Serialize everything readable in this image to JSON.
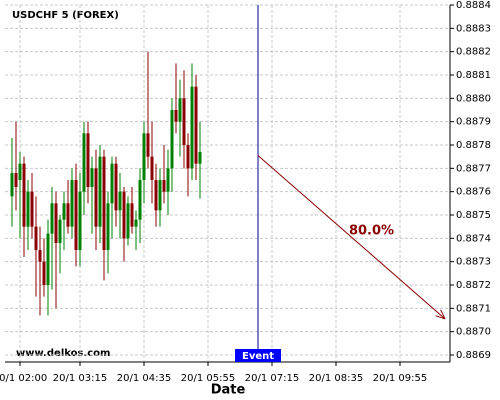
{
  "chart_data": {
    "type": "candlestick",
    "title": "USDCHF 5 (FOREX)",
    "watermark": "www.delkos.com",
    "x_label": "Date",
    "up_color": "#008000",
    "down_color": "#8b0000",
    "grid": true,
    "xlim": [
      -3.75,
      107.5
    ],
    "xticks": [
      {
        "value": 0,
        "label": "20/1 02:00"
      },
      {
        "value": 15,
        "label": "20/1 03:15"
      },
      {
        "value": 31,
        "label": "20/1 04:35"
      },
      {
        "value": 47,
        "label": "20/1 05:55"
      },
      {
        "value": 63,
        "label": "20/1 07:15"
      },
      {
        "value": 79,
        "label": "20/1 08:35"
      },
      {
        "value": 95,
        "label": "20/1 09:55"
      }
    ],
    "ylim": [
      0.88687,
      0.8884
    ],
    "yticks": [
      0.8869,
      {
        "value": 0.887,
        "label": "0.8870"
      },
      0.8871,
      0.8872,
      0.8873,
      0.8874,
      0.8875,
      0.8876,
      0.8877,
      0.8878,
      0.8879,
      {
        "value": 0.888,
        "label": "0.8880"
      },
      0.8881,
      0.8882,
      0.8883,
      0.8884
    ],
    "x": [
      -2,
      -1,
      0,
      1,
      2,
      3,
      4,
      5,
      6,
      7,
      8,
      9,
      10,
      11,
      12,
      13,
      14,
      15,
      16,
      17,
      18,
      19,
      20,
      21,
      22,
      23,
      24,
      25,
      26,
      27,
      28,
      29,
      30,
      31,
      32,
      33,
      34,
      35,
      36,
      37,
      38,
      39,
      40,
      41,
      42,
      43,
      44,
      45
    ],
    "open": [
      0.88758,
      0.88768,
      0.88765,
      0.88772,
      0.88745,
      0.8876,
      0.88745,
      0.88735,
      0.8873,
      0.8872,
      0.88742,
      0.88755,
      0.88738,
      0.88748,
      0.88755,
      0.88745,
      0.88765,
      0.88735,
      0.8876,
      0.88785,
      0.88762,
      0.8877,
      0.88745,
      0.88775,
      0.88735,
      0.88755,
      0.88772,
      0.88752,
      0.8876,
      0.8874,
      0.88755,
      0.88745,
      0.88748,
      0.88765,
      0.88785,
      0.88775,
      0.88765,
      0.88752,
      0.88765,
      0.8876,
      0.8877,
      0.88795,
      0.8879,
      0.888,
      0.8878,
      0.8877,
      0.88805,
      0.88772
    ],
    "high": [
      0.88783,
      0.8879,
      0.88777,
      0.88775,
      0.88765,
      0.88768,
      0.88758,
      0.88745,
      0.8874,
      0.88748,
      0.88762,
      0.8876,
      0.8875,
      0.8876,
      0.88765,
      0.8877,
      0.88772,
      0.88768,
      0.8879,
      0.8879,
      0.88775,
      0.88778,
      0.8878,
      0.88778,
      0.8876,
      0.88775,
      0.88775,
      0.88768,
      0.88762,
      0.88758,
      0.88762,
      0.88752,
      0.8877,
      0.8879,
      0.8882,
      0.8879,
      0.88772,
      0.8877,
      0.8878,
      0.88778,
      0.888,
      0.88815,
      0.88808,
      0.88812,
      0.88785,
      0.88815,
      0.8881,
      0.8879
    ],
    "low": [
      0.88745,
      0.88752,
      0.8874,
      0.88732,
      0.88735,
      0.8874,
      0.88715,
      0.88707,
      0.88715,
      0.88707,
      0.88718,
      0.8871,
      0.88725,
      0.88735,
      0.88742,
      0.8874,
      0.88728,
      0.88728,
      0.8875,
      0.88755,
      0.88742,
      0.88735,
      0.88738,
      0.88722,
      0.88725,
      0.8874,
      0.88745,
      0.8874,
      0.8873,
      0.88737,
      0.88742,
      0.88735,
      0.88738,
      0.88755,
      0.8877,
      0.88755,
      0.88745,
      0.88745,
      0.88755,
      0.8875,
      0.8876,
      0.88785,
      0.88775,
      0.8877,
      0.88758,
      0.88765,
      0.88765,
      0.88757
    ],
    "close": [
      0.88768,
      0.88762,
      0.88772,
      0.88745,
      0.8876,
      0.88745,
      0.88735,
      0.8873,
      0.8872,
      0.88742,
      0.88755,
      0.88738,
      0.88748,
      0.88755,
      0.88745,
      0.88765,
      0.88735,
      0.8876,
      0.88785,
      0.88762,
      0.8877,
      0.88745,
      0.88775,
      0.88735,
      0.88755,
      0.88772,
      0.88752,
      0.8876,
      0.8874,
      0.88755,
      0.88745,
      0.88748,
      0.88765,
      0.88785,
      0.88775,
      0.88765,
      0.88752,
      0.88765,
      0.8876,
      0.8877,
      0.88795,
      0.8879,
      0.888,
      0.8878,
      0.8877,
      0.88805,
      0.88772,
      0.88777
    ],
    "event": {
      "x": 59.5,
      "label": "Event",
      "color": "#00008b"
    },
    "forecast": {
      "x": [
        59.5,
        106.25
      ],
      "y": [
        0.887755,
        0.887055
      ],
      "label": "80.0%",
      "color": "#8b0000"
    }
  }
}
